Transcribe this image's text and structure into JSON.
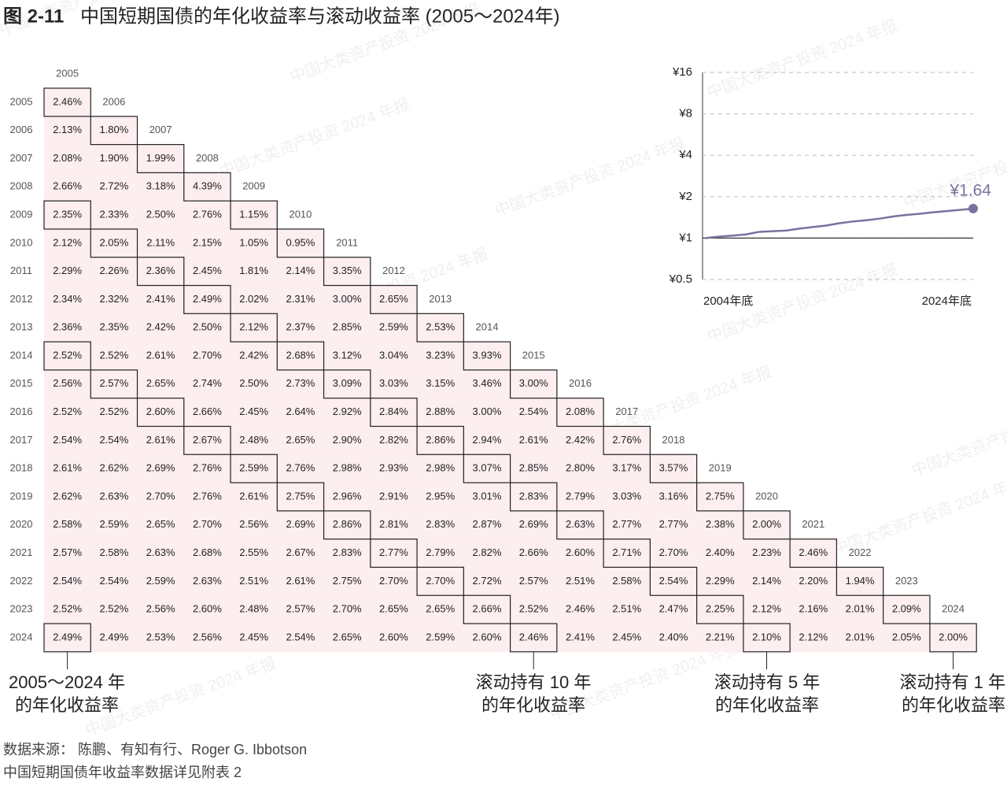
{
  "title": {
    "figure_no": "图 2-11",
    "text": "中国短期国债的年化收益率与滚动收益率 (2005～2024年)"
  },
  "watermark": "中国大类资产投资 2024 年报",
  "table": {
    "columns": [
      "2005",
      "2006",
      "2007",
      "2008",
      "2009",
      "2010",
      "2011",
      "2012",
      "2013",
      "2014",
      "2015",
      "2016",
      "2017",
      "2018",
      "2019",
      "2020",
      "2021",
      "2022",
      "2023",
      "2024"
    ],
    "rows": [
      {
        "label": "2005",
        "cells": [
          "2.46%"
        ]
      },
      {
        "label": "2006",
        "cells": [
          "2.13%",
          "1.80%"
        ]
      },
      {
        "label": "2007",
        "cells": [
          "2.08%",
          "1.90%",
          "1.99%"
        ]
      },
      {
        "label": "2008",
        "cells": [
          "2.66%",
          "2.72%",
          "3.18%",
          "4.39%"
        ]
      },
      {
        "label": "2009",
        "cells": [
          "2.35%",
          "2.33%",
          "2.50%",
          "2.76%",
          "1.15%"
        ]
      },
      {
        "label": "2010",
        "cells": [
          "2.12%",
          "2.05%",
          "2.11%",
          "2.15%",
          "1.05%",
          "0.95%"
        ]
      },
      {
        "label": "2011",
        "cells": [
          "2.29%",
          "2.26%",
          "2.36%",
          "2.45%",
          "1.81%",
          "2.14%",
          "3.35%"
        ]
      },
      {
        "label": "2012",
        "cells": [
          "2.34%",
          "2.32%",
          "2.41%",
          "2.49%",
          "2.02%",
          "2.31%",
          "3.00%",
          "2.65%"
        ]
      },
      {
        "label": "2013",
        "cells": [
          "2.36%",
          "2.35%",
          "2.42%",
          "2.50%",
          "2.12%",
          "2.37%",
          "2.85%",
          "2.59%",
          "2.53%"
        ]
      },
      {
        "label": "2014",
        "cells": [
          "2.52%",
          "2.52%",
          "2.61%",
          "2.70%",
          "2.42%",
          "2.68%",
          "3.12%",
          "3.04%",
          "3.23%",
          "3.93%"
        ]
      },
      {
        "label": "2015",
        "cells": [
          "2.56%",
          "2.57%",
          "2.65%",
          "2.74%",
          "2.50%",
          "2.73%",
          "3.09%",
          "3.03%",
          "3.15%",
          "3.46%",
          "3.00%"
        ]
      },
      {
        "label": "2016",
        "cells": [
          "2.52%",
          "2.52%",
          "2.60%",
          "2.66%",
          "2.45%",
          "2.64%",
          "2.92%",
          "2.84%",
          "2.88%",
          "3.00%",
          "2.54%",
          "2.08%"
        ]
      },
      {
        "label": "2017",
        "cells": [
          "2.54%",
          "2.54%",
          "2.61%",
          "2.67%",
          "2.48%",
          "2.65%",
          "2.90%",
          "2.82%",
          "2.86%",
          "2.94%",
          "2.61%",
          "2.42%",
          "2.76%"
        ]
      },
      {
        "label": "2018",
        "cells": [
          "2.61%",
          "2.62%",
          "2.69%",
          "2.76%",
          "2.59%",
          "2.76%",
          "2.98%",
          "2.93%",
          "2.98%",
          "3.07%",
          "2.85%",
          "2.80%",
          "3.17%",
          "3.57%"
        ]
      },
      {
        "label": "2019",
        "cells": [
          "2.62%",
          "2.63%",
          "2.70%",
          "2.76%",
          "2.61%",
          "2.75%",
          "2.96%",
          "2.91%",
          "2.95%",
          "3.01%",
          "2.83%",
          "2.79%",
          "3.03%",
          "3.16%",
          "2.75%"
        ]
      },
      {
        "label": "2020",
        "cells": [
          "2.58%",
          "2.59%",
          "2.65%",
          "2.70%",
          "2.56%",
          "2.69%",
          "2.86%",
          "2.81%",
          "2.83%",
          "2.87%",
          "2.69%",
          "2.63%",
          "2.77%",
          "2.77%",
          "2.38%",
          "2.00%"
        ]
      },
      {
        "label": "2021",
        "cells": [
          "2.57%",
          "2.58%",
          "2.63%",
          "2.68%",
          "2.55%",
          "2.67%",
          "2.83%",
          "2.77%",
          "2.79%",
          "2.82%",
          "2.66%",
          "2.60%",
          "2.71%",
          "2.70%",
          "2.40%",
          "2.23%",
          "2.46%"
        ]
      },
      {
        "label": "2022",
        "cells": [
          "2.54%",
          "2.54%",
          "2.59%",
          "2.63%",
          "2.51%",
          "2.61%",
          "2.75%",
          "2.70%",
          "2.70%",
          "2.72%",
          "2.57%",
          "2.51%",
          "2.58%",
          "2.54%",
          "2.29%",
          "2.14%",
          "2.20%",
          "1.94%"
        ]
      },
      {
        "label": "2023",
        "cells": [
          "2.52%",
          "2.52%",
          "2.56%",
          "2.60%",
          "2.48%",
          "2.57%",
          "2.70%",
          "2.65%",
          "2.65%",
          "2.66%",
          "2.52%",
          "2.46%",
          "2.51%",
          "2.47%",
          "2.25%",
          "2.12%",
          "2.16%",
          "2.01%",
          "2.09%"
        ]
      },
      {
        "label": "2024",
        "cells": [
          "2.49%",
          "2.49%",
          "2.53%",
          "2.56%",
          "2.45%",
          "2.54%",
          "2.65%",
          "2.60%",
          "2.59%",
          "2.60%",
          "2.46%",
          "2.41%",
          "2.45%",
          "2.40%",
          "2.21%",
          "2.10%",
          "2.12%",
          "2.01%",
          "2.05%",
          "2.00%"
        ]
      }
    ]
  },
  "annotations": [
    {
      "line1": "2005～2024 年",
      "line2": "的年化收益率"
    },
    {
      "line1": "滚动持有 10 年",
      "line2": "的年化收益率"
    },
    {
      "line1": "滚动持有 5 年",
      "line2": "的年化收益率"
    },
    {
      "line1": "滚动持有 1 年",
      "line2": "的年化收益率"
    }
  ],
  "chart_data": {
    "type": "line",
    "log_scale": true,
    "grid": true,
    "categories": [
      "2004年底",
      null,
      null,
      null,
      null,
      null,
      null,
      null,
      null,
      null,
      null,
      null,
      null,
      null,
      null,
      null,
      null,
      null,
      null,
      null,
      "2024年底"
    ],
    "series": [
      {
        "name": null,
        "color": "#77729f",
        "values": [
          1,
          1.0246,
          1.043,
          1.0638,
          1.1105,
          1.1233,
          1.134,
          1.172,
          1.2031,
          1.2335,
          1.282,
          1.3204,
          1.3479,
          1.3851,
          1.4345,
          1.474,
          1.5035,
          1.5405,
          1.5704,
          1.6032,
          1.64
        ],
        "value_labels": [
          null,
          null,
          null,
          null,
          null,
          null,
          null,
          null,
          null,
          null,
          null,
          null,
          null,
          null,
          null,
          null,
          null,
          null,
          null,
          null,
          "¥1.64"
        ]
      }
    ],
    "ylim": [
      0.5,
      16
    ],
    "yticks": [
      {
        "value": 0.5,
        "label": "¥0.5"
      },
      {
        "value": 1,
        "label": "¥1"
      },
      {
        "value": 2,
        "label": "¥2"
      },
      {
        "value": 4,
        "label": "¥4"
      },
      {
        "value": 8,
        "label": "¥8"
      },
      {
        "value": 16,
        "label": "¥16"
      }
    ]
  },
  "footer": {
    "source": "数据来源： 陈鹏、有知有行、Roger G. Ibbotson",
    "note": "中国短期国债年收益率数据详见附表 2"
  }
}
